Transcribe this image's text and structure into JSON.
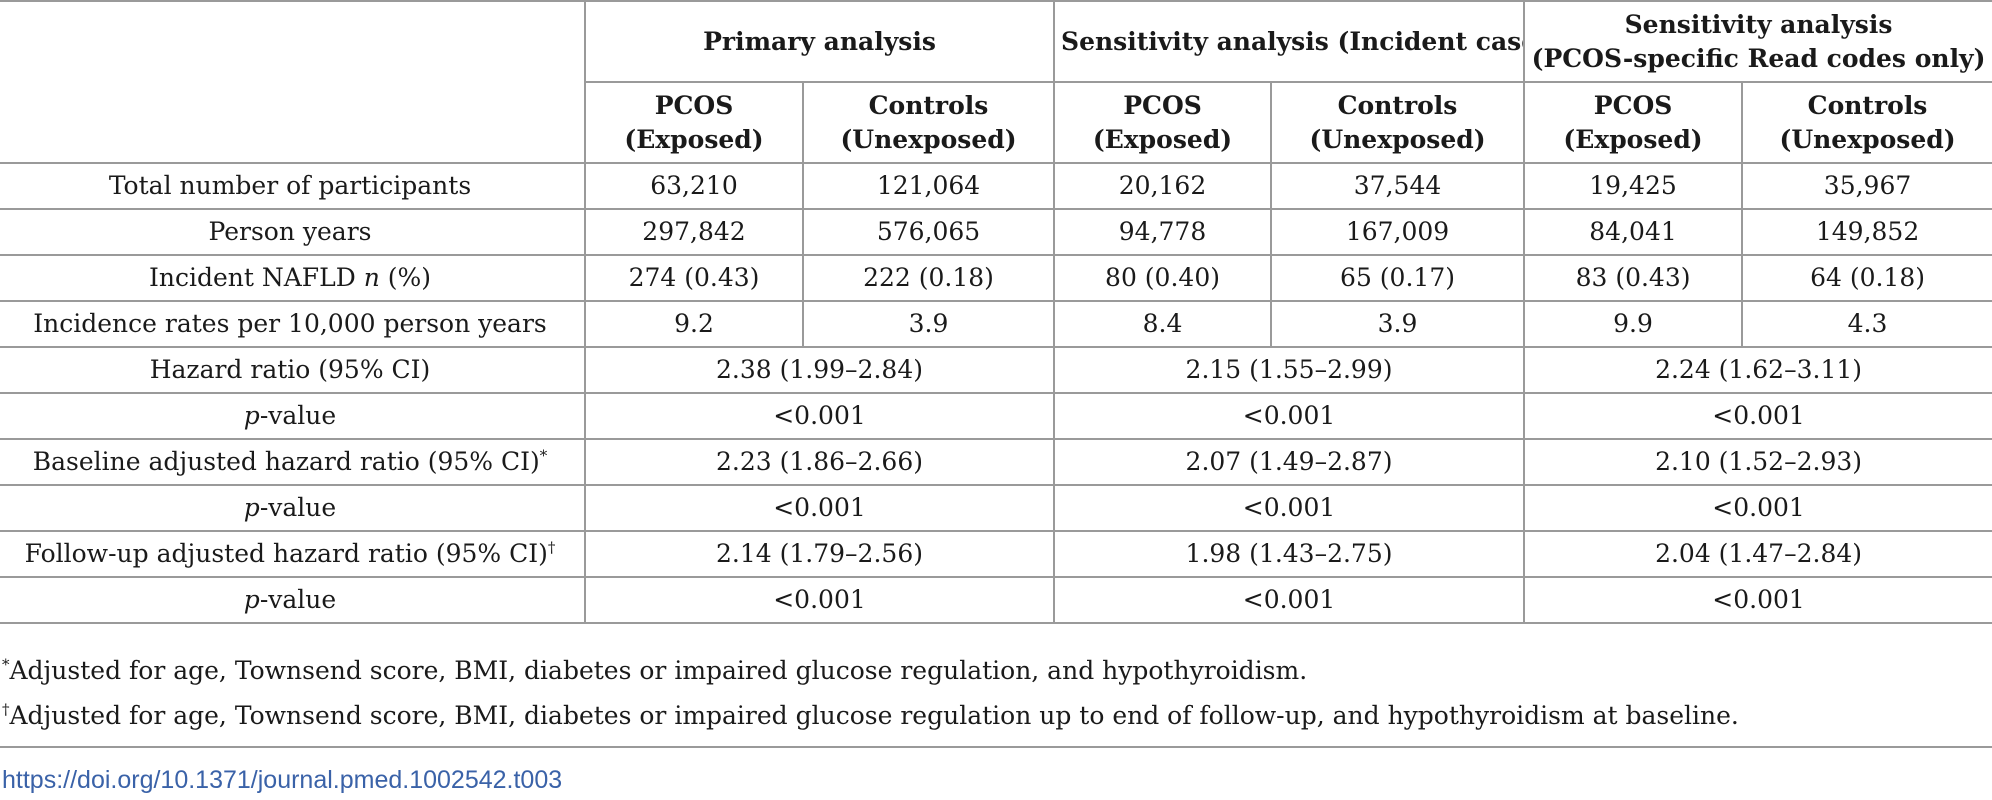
{
  "header": {
    "groups": [
      {
        "lines": [
          "Primary analysis"
        ]
      },
      {
        "lines": [
          "Sensitivity analysis (Incident cases)"
        ]
      },
      {
        "lines": [
          "Sensitivity analysis",
          "(PCOS-specific Read codes only)"
        ]
      }
    ],
    "subcols": [
      {
        "lines": [
          "PCOS",
          "(Exposed)"
        ]
      },
      {
        "lines": [
          "Controls",
          "(Unexposed)"
        ]
      },
      {
        "lines": [
          "PCOS",
          "(Exposed)"
        ]
      },
      {
        "lines": [
          "Controls",
          "(Unexposed)"
        ]
      },
      {
        "lines": [
          "PCOS",
          "(Exposed)"
        ]
      },
      {
        "lines": [
          "Controls",
          "(Unexposed)"
        ]
      }
    ]
  },
  "rows": [
    {
      "label": "Total number of participants",
      "cells": [
        "63,210",
        "121,064",
        "20,162",
        "37,544",
        "19,425",
        "35,967"
      ]
    },
    {
      "label": "Person years",
      "cells": [
        "297,842",
        "576,065",
        "94,778",
        "167,009",
        "84,041",
        "149,852"
      ]
    },
    {
      "label_pre": "Incident NAFLD ",
      "label_italic": "n",
      "label_post": " (%)",
      "cells": [
        "274 (0.43)",
        "222 (0.18)",
        "80 (0.40)",
        "65 (0.17)",
        "83 (0.43)",
        "64 (0.18)"
      ]
    },
    {
      "label": "Incidence rates per 10,000 person years",
      "cells": [
        "9.2",
        "3.9",
        "8.4",
        "3.9",
        "9.9",
        "4.3"
      ]
    }
  ],
  "merged_rows": [
    {
      "label": "Hazard ratio (95% CI)",
      "sup": "",
      "values": [
        "2.38 (1.99–2.84)",
        "2.15 (1.55–2.99)",
        "2.24 (1.62–3.11)"
      ]
    },
    {
      "label_italic": "p",
      "label_post": "-value",
      "values": [
        "<0.001",
        "<0.001",
        "<0.001"
      ]
    },
    {
      "label": "Baseline adjusted hazard ratio (95% CI)",
      "sup": "*",
      "values": [
        "2.23 (1.86–2.66)",
        "2.07 (1.49–2.87)",
        "2.10 (1.52–2.93)"
      ]
    },
    {
      "label_italic": "p",
      "label_post": "-value",
      "values": [
        "<0.001",
        "<0.001",
        "<0.001"
      ]
    },
    {
      "label": "Follow-up adjusted hazard ratio (95% CI)",
      "sup": "†",
      "values": [
        "2.14 (1.79–2.56)",
        "1.98 (1.43–2.75)",
        "2.04 (1.47–2.84)"
      ]
    },
    {
      "label_italic": "p",
      "label_post": "-value",
      "values": [
        "<0.001",
        "<0.001",
        "<0.001"
      ]
    }
  ],
  "footnotes": [
    {
      "mark": "*",
      "text": "Adjusted for age, Townsend score, BMI, diabetes or impaired glucose regulation, and hypothyroidism."
    },
    {
      "mark": "†",
      "text": "Adjusted for age, Townsend score, BMI, diabetes or impaired glucose regulation up to end of follow-up, and hypothyroidism at baseline."
    }
  ],
  "doi": "https://doi.org/10.1371/journal.pmed.1002542.t003"
}
